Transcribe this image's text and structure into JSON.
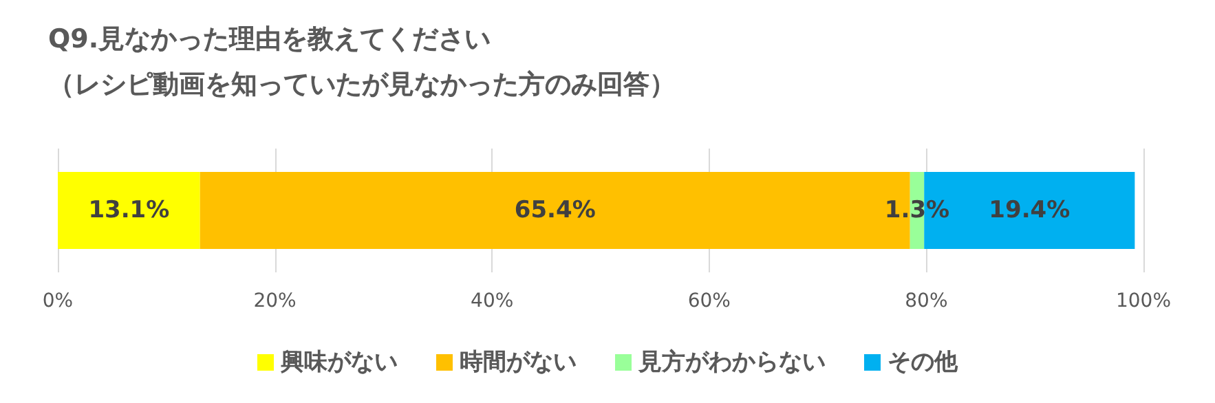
{
  "chart_data": {
    "type": "bar",
    "orientation": "horizontal",
    "stacked": true,
    "title": "Q9.見なかった理由を教えてください",
    "subtitle": "（レシピ動画を知っていたが見なかった方のみ回答）",
    "categories": [
      null
    ],
    "series": [
      {
        "name": "興味がない",
        "color": "#ffff00",
        "values": [
          13.1
        ],
        "value_labels": [
          "13.1%"
        ]
      },
      {
        "name": "時間がない",
        "color": "#ffc000",
        "values": [
          65.4
        ],
        "value_labels": [
          "65.4%"
        ]
      },
      {
        "name": "見方がわからない",
        "color": "#99ff99",
        "values": [
          1.3
        ],
        "value_labels": [
          "1.3%"
        ]
      },
      {
        "name": "その他",
        "color": "#00b0f0",
        "values": [
          19.4
        ],
        "value_labels": [
          "19.4%"
        ]
      }
    ],
    "xlim": [
      0,
      100
    ],
    "xticks": [
      {
        "value": 0,
        "label": "0%"
      },
      {
        "value": 20,
        "label": "20%"
      },
      {
        "value": 40,
        "label": "40%"
      },
      {
        "value": 60,
        "label": "60%"
      },
      {
        "value": 80,
        "label": "80%"
      },
      {
        "value": 100,
        "label": "100%"
      }
    ],
    "grid": "x",
    "legend": "bottom"
  }
}
